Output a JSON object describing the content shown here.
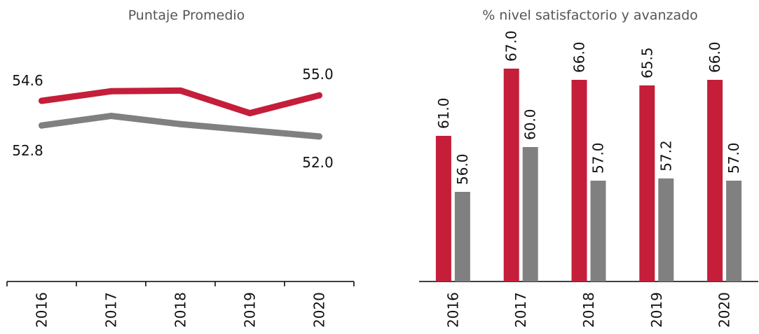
{
  "colors": {
    "series_a": "#C41E3A",
    "series_b": "#808080"
  },
  "chart_data": [
    {
      "type": "line",
      "title": "Puntaje Promedio",
      "categories": [
        "2016",
        "2017",
        "2018",
        "2019",
        "2020"
      ],
      "series": [
        {
          "values": [
            54.6,
            55.3,
            55.35,
            53.7,
            55.0
          ],
          "color": "#C41E3A"
        },
        {
          "values": [
            52.8,
            53.5,
            52.9,
            52.45,
            52.0
          ],
          "color": "#808080"
        }
      ],
      "data_labels": [
        {
          "text": "54.6",
          "series": 0,
          "index": 0,
          "position": "above-left"
        },
        {
          "text": "55.0",
          "series": 0,
          "index": 4,
          "position": "above"
        },
        {
          "text": "52.8",
          "series": 1,
          "index": 0,
          "position": "below-left"
        },
        {
          "text": "52.0",
          "series": 1,
          "index": 4,
          "position": "below"
        }
      ],
      "grid": false,
      "legend": "none"
    },
    {
      "type": "bar",
      "title": "% nivel satisfactorio y avanzado",
      "categories": [
        "2016",
        "2017",
        "2018",
        "2019",
        "2020"
      ],
      "series": [
        {
          "values": [
            61.0,
            67.0,
            66.0,
            65.5,
            66.0
          ],
          "labels": [
            "61.0",
            "67.0",
            "66.0",
            "65.5",
            "66.0"
          ],
          "color": "#C41E3A"
        },
        {
          "values": [
            56.0,
            60.0,
            57.0,
            57.2,
            57.0
          ],
          "labels": [
            "56.0",
            "60.0",
            "57.0",
            "57.2",
            "57.0"
          ],
          "color": "#808080"
        }
      ],
      "ylim": [
        48,
        69
      ],
      "grid": false,
      "legend": "none"
    }
  ]
}
